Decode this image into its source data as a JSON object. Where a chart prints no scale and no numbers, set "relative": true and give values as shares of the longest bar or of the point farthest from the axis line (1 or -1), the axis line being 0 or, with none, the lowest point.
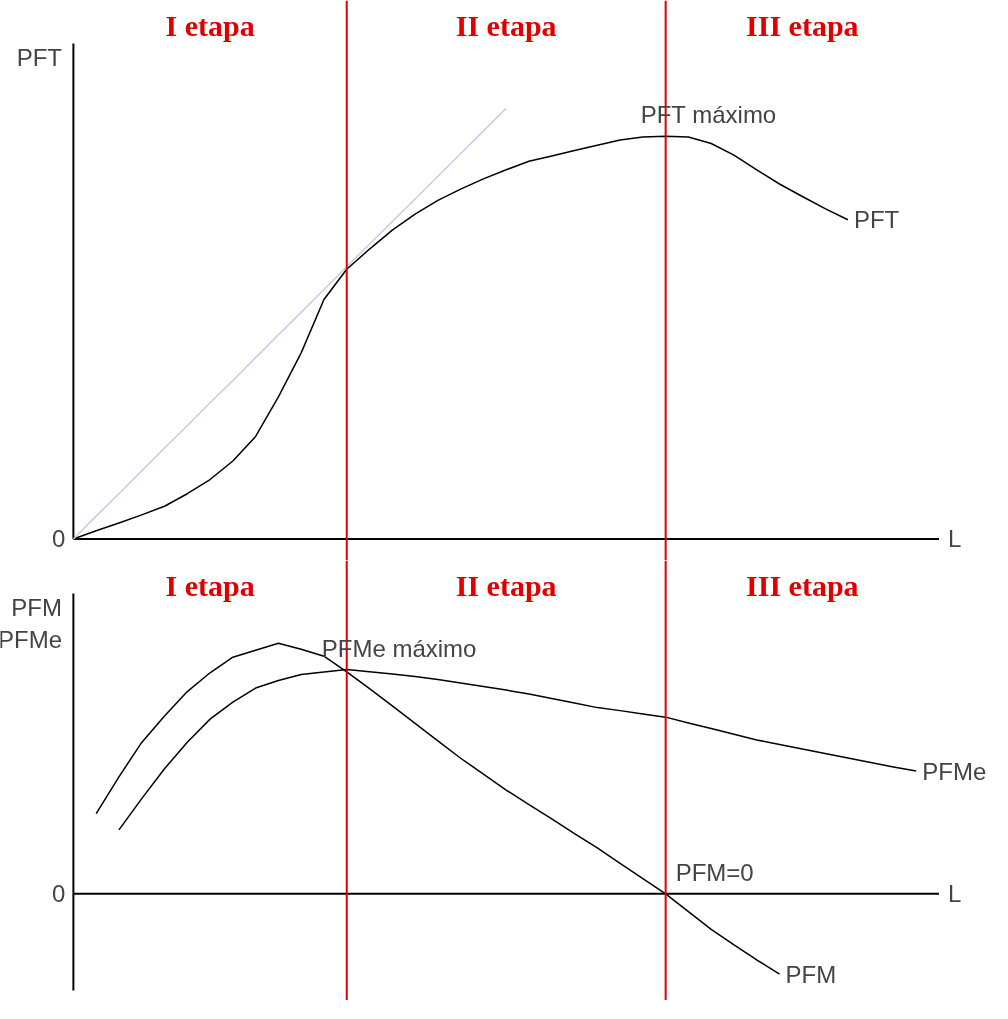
{
  "chart_data": [
    {
      "type": "line",
      "relative": true,
      "ylabel": "PFT",
      "xlabel": "L",
      "grid": false,
      "categories": [
        null,
        null,
        null,
        null,
        null,
        null,
        null,
        null,
        null,
        null,
        null,
        null,
        null,
        null,
        null,
        null,
        null,
        null,
        null,
        null,
        null,
        null,
        null,
        null,
        null,
        null,
        null,
        null,
        null,
        null,
        null,
        null,
        null,
        null,
        null,
        null,
        null,
        null,
        null
      ],
      "series": [
        {
          "name": "PFT",
          "color": "#000000",
          "values": [
            0,
            0.019,
            0.037,
            0.056,
            0.076,
            0.105,
            0.138,
            0.181,
            0.238,
            0.33,
            0.432,
            0.556,
            0.626,
            0.673,
            0.717,
            0.754,
            0.786,
            0.812,
            0.836,
            0.857,
            0.877,
            0.889,
            0.902,
            0.914,
            0.926,
            0.933,
            0.935,
            0.933,
            0.918,
            0.891,
            0.857,
            0.824,
            0.795,
            0.767,
            0.741,
            null,
            null,
            null,
            null
          ]
        },
        {
          "color": "#c8c8f0",
          "values": [
            0,
            0.053,
            0.105,
            0.158,
            0.211,
            0.263,
            0.316,
            0.368,
            0.421,
            0.474,
            0.526,
            0.579,
            0.632,
            0.684,
            0.737,
            0.789,
            0.842,
            0.895,
            0.947,
            1,
            null,
            null,
            null,
            null,
            null,
            null,
            null,
            null,
            null,
            null,
            null,
            null,
            null,
            null,
            null,
            null,
            null,
            null,
            null
          ]
        }
      ],
      "legend": false,
      "annotations": [
        "I etapa",
        "II etapa",
        "III etapa",
        "0",
        "PFT  máximo"
      ]
    },
    {
      "type": "line",
      "relative": true,
      "ylabel": "PFM\nPFMe",
      "xlabel": "L",
      "grid": false,
      "categories": [
        null,
        null,
        null,
        null,
        null,
        null,
        null,
        null,
        null,
        null,
        null,
        null,
        null,
        null,
        null,
        null,
        null,
        null,
        null,
        null,
        null,
        null,
        null,
        null,
        null,
        null,
        null,
        null,
        null,
        null,
        null,
        null,
        null,
        null,
        null,
        null,
        null,
        null,
        null
      ],
      "series": [
        {
          "name": "PFM",
          "color": "#000000",
          "values": [
            null,
            0.32,
            0.467,
            0.604,
            0.71,
            0.807,
            0.882,
            0.944,
            0.972,
            1,
            0.976,
            0.948,
            0.886,
            0.819,
            0.75,
            0.68,
            0.61,
            0.541,
            0.478,
            0.414,
            0.356,
            0.299,
            0.24,
            0.183,
            0.122,
            0.061,
            0,
            -0.071,
            -0.142,
            -0.204,
            -0.264,
            -0.32,
            null,
            null,
            null,
            null,
            null,
            null,
            null
          ]
        },
        {
          "name": "PFMe",
          "color": "#000000",
          "values": [
            null,
            null,
            0.255,
            0.38,
            0.499,
            0.605,
            0.697,
            0.765,
            0.821,
            0.851,
            0.875,
            0.885,
            0.895,
            0.886,
            0.877,
            0.867,
            0.855,
            0.841,
            0.827,
            0.813,
            0.797,
            0.779,
            0.761,
            0.743,
            0.731,
            0.718,
            0.705,
            0.682,
            0.66,
            0.637,
            0.614,
            0.596,
            0.578,
            0.56,
            0.542,
            0.524,
            0.506,
            0.49,
            null
          ]
        }
      ],
      "legend": false,
      "annotations": [
        "I etapa",
        "II etapa",
        "III etapa",
        "0",
        "PFMe  máximo",
        "PFM=0"
      ]
    }
  ]
}
